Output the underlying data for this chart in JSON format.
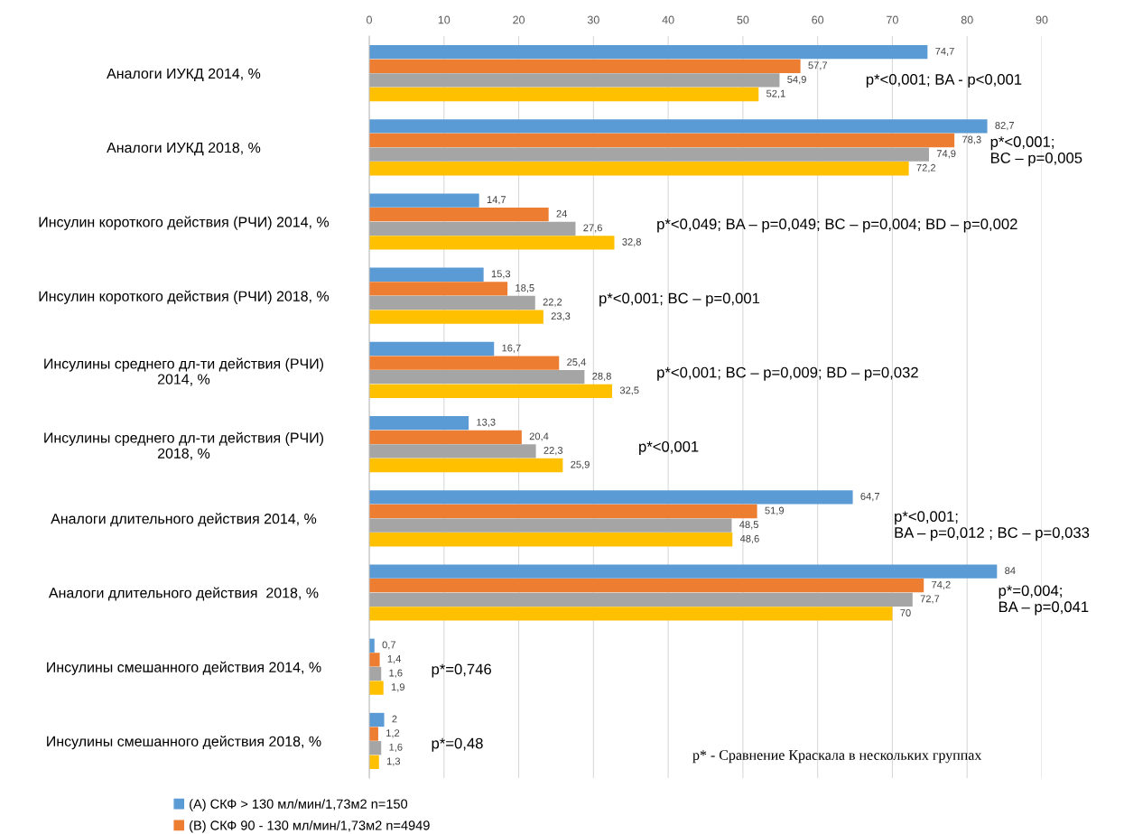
{
  "chart_data": {
    "type": "bar",
    "orientation": "horizontal",
    "categories": [
      "Аналоги ИУКД 2014, %",
      "Аналоги ИУКД 2018, %",
      "Инсулин короткого действия (РЧИ) 2014, %",
      "Инсулин короткого действия (РЧИ) 2018, %",
      "Инсулины среднего дл-ти действия (РЧИ)\n2014, %",
      "Инсулины среднего дл-ти действия (РЧИ)\n2018, %",
      "Аналоги длительного действия 2014, %",
      "Аналоги длительного действия  2018, %",
      "Инсулины смешанного действия 2014, %",
      "Инсулины смешанного действия 2018, %"
    ],
    "series": [
      {
        "name": "(A) СКФ > 130 мл/мин/1,73м2 n=150",
        "color": "#5b9bd5",
        "values": [
          74.7,
          82.7,
          14.7,
          15.3,
          16.7,
          13.3,
          64.7,
          84,
          0.7,
          2
        ],
        "value_labels": [
          "74,7",
          "82,7",
          "14,7",
          "15,3",
          "16,7",
          "13,3",
          "64,7",
          "84",
          "0,7",
          "2"
        ]
      },
      {
        "name": "(B) СКФ 90 - 130 мл/мин/1,73м2 n=4949",
        "color": "#ed7d31",
        "values": [
          57.7,
          78.3,
          24,
          18.5,
          25.4,
          20.4,
          51.9,
          74.2,
          1.4,
          1.2
        ],
        "value_labels": [
          "57,7",
          "78,3",
          "24",
          "18,5",
          "25,4",
          "20,4",
          "51,9",
          "74,2",
          "1,4",
          "1,2"
        ]
      },
      {
        "color": "#a5a5a5",
        "values": [
          54.9,
          74.9,
          27.6,
          22.2,
          28.8,
          22.3,
          48.5,
          72.7,
          1.6,
          1.6
        ],
        "value_labels": [
          "54,9",
          "74,9",
          "27,6",
          "22,2",
          "28,8",
          "22,3",
          "48,5",
          "72,7",
          "1,6",
          "1,6"
        ]
      },
      {
        "color": "#ffc000",
        "values": [
          52.1,
          72.2,
          32.8,
          23.3,
          32.5,
          25.9,
          48.6,
          70,
          1.9,
          1.3
        ],
        "value_labels": [
          "52,1",
          "72,2",
          "32,8",
          "23,3",
          "32,5",
          "25,9",
          "48,6",
          "70",
          "1,9",
          "1,3"
        ]
      }
    ],
    "xlim": [
      0,
      90
    ],
    "xticks": [
      0,
      10,
      20,
      30,
      40,
      50,
      60,
      70,
      80,
      90
    ],
    "grid": "x",
    "legend": "bottom left",
    "annotations": [
      "p*<0,001; BA - p<0,001",
      "p*<0,001;\nBC – p=0,005",
      "p*<0,049; BA – p=0,049; BC – p=0,004; BD – p=0,002",
      "p*<0,001; BC – p=0,001",
      "p*<0,001; BC – p=0,009; BD – p=0,032",
      "p*<0,001",
      "p*<0,001;\nBA – p=0,012 ; BC – p=0,033",
      "p*=0,004;\nBA – p=0,041",
      "p*=0,746",
      "p*=0,48",
      "p* - Сравнение Краскала в нескольких группах"
    ]
  }
}
